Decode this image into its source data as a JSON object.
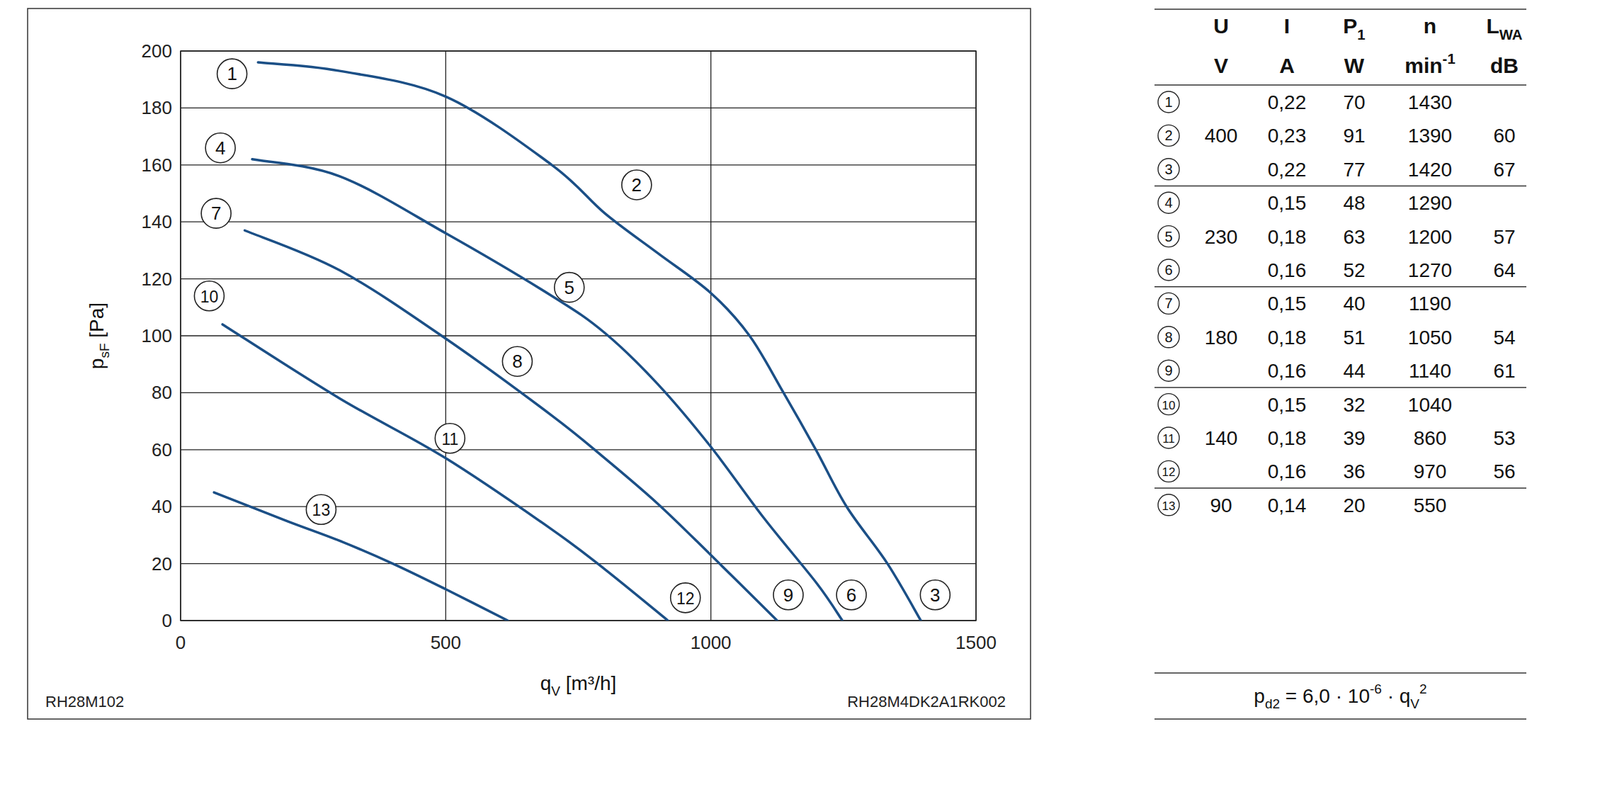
{
  "chart_data": {
    "type": "line",
    "xlabel": [
      {
        "t": "q"
      },
      {
        "sub": "V"
      },
      {
        "t": " [m³/h]"
      }
    ],
    "ylabel": [
      {
        "t": "p"
      },
      {
        "sub": "sF"
      },
      {
        "t": " [Pa]"
      }
    ],
    "xlim": [
      0,
      1500
    ],
    "ylim": [
      0,
      200
    ],
    "xticks": [
      0,
      500,
      1000,
      1500
    ],
    "yticks": [
      0,
      20,
      40,
      60,
      80,
      100,
      120,
      140,
      160,
      180,
      200
    ],
    "grid": true,
    "series": [
      {
        "color": "#1b4f86",
        "x": [
          146,
          300,
          500,
          700,
          800,
          900,
          1000,
          1073,
          1137,
          1198,
          1256,
          1333,
          1396
        ],
        "values": [
          196,
          193,
          184,
          160,
          143,
          129,
          115,
          100,
          80,
          60,
          40,
          20,
          0
        ]
      },
      {
        "color": "#1b4f86",
        "x": [
          135,
          300,
          500,
          700,
          800,
          900,
          1000,
          1100,
          1200,
          1248
        ],
        "values": [
          162,
          156,
          136,
          114,
          101,
          83,
          61,
          36,
          13,
          0
        ]
      },
      {
        "color": "#1b4f86",
        "x": [
          121,
          300,
          500,
          700,
          800,
          900,
          1000,
          1125
        ],
        "values": [
          137,
          123,
          99,
          72,
          57,
          41,
          23,
          0
        ]
      },
      {
        "color": "#1b4f86",
        "x": [
          79,
          300,
          500,
          700,
          800,
          919
        ],
        "values": [
          104,
          78,
          57,
          32,
          18,
          0
        ]
      },
      {
        "color": "#1b4f86",
        "x": [
          63,
          200,
          300,
          400,
          500,
          617
        ],
        "values": [
          45,
          35,
          28,
          20,
          11,
          0
        ]
      }
    ],
    "annotations": [
      {
        "text": "1",
        "x": 97,
        "y": 192
      },
      {
        "text": "2",
        "x": 860,
        "y": 153
      },
      {
        "text": "3",
        "x": 1423,
        "y": 9
      },
      {
        "text": "4",
        "x": 75,
        "y": 166
      },
      {
        "text": "5",
        "x": 733,
        "y": 117
      },
      {
        "text": "6",
        "x": 1265,
        "y": 9
      },
      {
        "text": "7",
        "x": 67,
        "y": 143
      },
      {
        "text": "8",
        "x": 635,
        "y": 91
      },
      {
        "text": "9",
        "x": 1146,
        "y": 9
      },
      {
        "text": "10",
        "x": 54,
        "y": 114
      },
      {
        "text": "11",
        "x": 508,
        "y": 64
      },
      {
        "text": "12",
        "x": 952,
        "y": 8
      },
      {
        "text": "13",
        "x": 265,
        "y": 39
      }
    ]
  },
  "labels": {
    "left": "RH28M102",
    "right": "RH28M4DK2A1RK002"
  },
  "table": {
    "header": [
      [
        {
          "t": "U"
        }
      ],
      [
        {
          "t": "I"
        }
      ],
      [
        {
          "t": "P"
        },
        {
          "sub": "1"
        }
      ],
      [
        {
          "t": "n"
        }
      ],
      [
        {
          "t": "L"
        },
        {
          "sub": "WA"
        }
      ]
    ],
    "units": [
      [
        {
          "t": "V"
        }
      ],
      [
        {
          "t": "A"
        }
      ],
      [
        {
          "t": "W"
        }
      ],
      [
        {
          "t": "min"
        },
        {
          "sup": "-1"
        }
      ],
      [
        {
          "t": "dB"
        }
      ]
    ],
    "groups": [
      {
        "U": "400",
        "rows": [
          [
            "1",
            "0,22",
            "70",
            "1430",
            null
          ],
          [
            "2",
            "0,23",
            "91",
            "1390",
            "60"
          ],
          [
            "3",
            "0,22",
            "77",
            "1420",
            "67"
          ]
        ]
      },
      {
        "U": "230",
        "rows": [
          [
            "4",
            "0,15",
            "48",
            "1290",
            null
          ],
          [
            "5",
            "0,18",
            "63",
            "1200",
            "57"
          ],
          [
            "6",
            "0,16",
            "52",
            "1270",
            "64"
          ]
        ]
      },
      {
        "U": "180",
        "rows": [
          [
            "7",
            "0,15",
            "40",
            "1190",
            null
          ],
          [
            "8",
            "0,18",
            "51",
            "1050",
            "54"
          ],
          [
            "9",
            "0,16",
            "44",
            "1140",
            "61"
          ]
        ]
      },
      {
        "U": "140",
        "rows": [
          [
            "10",
            "0,15",
            "32",
            "1040",
            null
          ],
          [
            "11",
            "0,18",
            "39",
            "860",
            "53"
          ],
          [
            "12",
            "0,16",
            "36",
            "970",
            "56"
          ]
        ]
      },
      {
        "U": "90",
        "rows": [
          [
            "13",
            "0,14",
            "20",
            "550",
            null
          ]
        ]
      }
    ]
  },
  "formula": [
    {
      "t": "p"
    },
    {
      "sub": "d2"
    },
    {
      "t": " = 6,0 · 10"
    },
    {
      "sup": "-6"
    },
    {
      "t": " · q"
    },
    {
      "sub": "V"
    },
    {
      "sup": "2"
    }
  ]
}
